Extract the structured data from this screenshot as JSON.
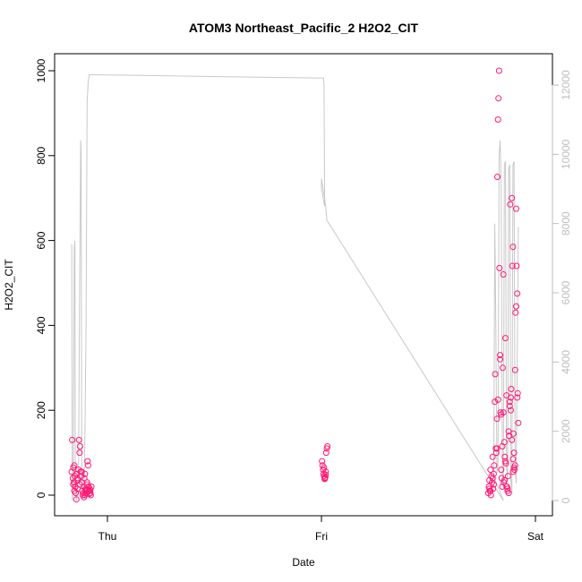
{
  "chart_data": {
    "type": "scatter",
    "title": "ATOM3 Northeast_Pacific_2 H2O2_CIT",
    "xlabel": "Date",
    "ylabel": "H2O2_CIT",
    "x_ticks": [
      {
        "label": "Thu",
        "value": 1.0
      },
      {
        "label": "Fri",
        "value": 2.0
      },
      {
        "label": "Sat",
        "value": 3.0
      }
    ],
    "xlim": [
      0.85,
      3.05
    ],
    "ylim": [
      -40,
      1040
    ],
    "y_ticks": [
      0,
      200,
      400,
      600,
      800,
      1000
    ],
    "y2lim": [
      -500,
      12500
    ],
    "y2_ticks": [
      0,
      2000,
      4000,
      6000,
      8000,
      10000,
      12000
    ],
    "colors": {
      "points": "#ff1a75",
      "altitude_line": "#c8c8c8",
      "right_axis": "#bdbdbd",
      "frame": "#000000"
    },
    "series": [
      {
        "type": "scatter",
        "points": [
          [
            0.835,
            130
          ],
          [
            0.833,
            55
          ],
          [
            0.838,
            40
          ],
          [
            0.84,
            65
          ],
          [
            0.843,
            30
          ],
          [
            0.845,
            70
          ],
          [
            0.848,
            45
          ],
          [
            0.85,
            20
          ],
          [
            0.852,
            5
          ],
          [
            0.855,
            -10
          ],
          [
            0.857,
            50
          ],
          [
            0.86,
            15
          ],
          [
            0.862,
            35
          ],
          [
            0.865,
            60
          ],
          [
            0.867,
            130
          ],
          [
            0.87,
            100
          ],
          [
            0.872,
            115
          ],
          [
            0.875,
            55
          ],
          [
            0.877,
            45
          ],
          [
            0.88,
            30
          ],
          [
            0.882,
            10
          ],
          [
            0.885,
            0
          ],
          [
            0.887,
            5
          ],
          [
            0.89,
            20
          ],
          [
            0.892,
            40
          ],
          [
            0.895,
            50
          ],
          [
            0.897,
            10
          ],
          [
            0.9,
            15
          ],
          [
            0.902,
            5
          ],
          [
            0.905,
            30
          ],
          [
            0.907,
            80
          ],
          [
            0.91,
            70
          ],
          [
            0.912,
            20
          ],
          [
            0.915,
            10
          ],
          [
            0.917,
            15
          ],
          [
            0.92,
            5
          ],
          [
            0.922,
            0
          ],
          [
            0.925,
            20
          ],
          [
            0.87,
            25
          ],
          [
            0.88,
            55
          ],
          [
            0.89,
            -5
          ],
          [
            0.895,
            0
          ],
          [
            0.9,
            12
          ],
          [
            0.905,
            25
          ],
          [
            0.91,
            8
          ],
          [
            0.915,
            3
          ],
          [
            0.92,
            12
          ],
          [
            0.86,
            40
          ],
          [
            0.845,
            10
          ],
          [
            0.84,
            25
          ],
          [
            2.003,
            80
          ],
          [
            2.005,
            70
          ],
          [
            2.008,
            60
          ],
          [
            2.01,
            50
          ],
          [
            2.012,
            45
          ],
          [
            2.015,
            40
          ],
          [
            2.018,
            42
          ],
          [
            2.02,
            55
          ],
          [
            2.022,
            100
          ],
          [
            2.025,
            110
          ],
          [
            2.028,
            115
          ],
          [
            2.012,
            65
          ],
          [
            2.015,
            38
          ],
          [
            2.02,
            48
          ],
          [
            2.78,
            5
          ],
          [
            2.782,
            20
          ],
          [
            2.785,
            35
          ],
          [
            2.787,
            10
          ],
          [
            2.79,
            60
          ],
          [
            2.792,
            0
          ],
          [
            2.795,
            45
          ],
          [
            2.797,
            30
          ],
          [
            2.8,
            90
          ],
          [
            2.802,
            15
          ],
          [
            2.805,
            25
          ],
          [
            2.807,
            70
          ],
          [
            2.81,
            220
          ],
          [
            2.812,
            285
          ],
          [
            2.815,
            110
          ],
          [
            2.817,
            100
          ],
          [
            2.82,
            180
          ],
          [
            2.822,
            750
          ],
          [
            2.825,
            885
          ],
          [
            2.827,
            935
          ],
          [
            2.83,
            1000
          ],
          [
            2.832,
            535
          ],
          [
            2.835,
            330
          ],
          [
            2.837,
            195
          ],
          [
            2.84,
            60
          ],
          [
            2.842,
            40
          ],
          [
            2.845,
            20
          ],
          [
            2.847,
            300
          ],
          [
            2.85,
            520
          ],
          [
            2.852,
            30
          ],
          [
            2.855,
            125
          ],
          [
            2.857,
            90
          ],
          [
            2.86,
            370
          ],
          [
            2.862,
            75
          ],
          [
            2.865,
            235
          ],
          [
            2.867,
            20
          ],
          [
            2.87,
            10
          ],
          [
            2.872,
            45
          ],
          [
            2.875,
            150
          ],
          [
            2.877,
            140
          ],
          [
            2.88,
            210
          ],
          [
            2.882,
            685
          ],
          [
            2.885,
            200
          ],
          [
            2.887,
            250
          ],
          [
            2.89,
            700
          ],
          [
            2.892,
            540
          ],
          [
            2.895,
            585
          ],
          [
            2.897,
            145
          ],
          [
            2.9,
            100
          ],
          [
            2.902,
            60
          ],
          [
            2.905,
            295
          ],
          [
            2.907,
            430
          ],
          [
            2.91,
            675
          ],
          [
            2.912,
            540
          ],
          [
            2.915,
            475
          ],
          [
            2.917,
            240
          ],
          [
            2.92,
            170
          ],
          [
            2.9,
            65
          ],
          [
            2.905,
            70
          ],
          [
            2.895,
            85
          ],
          [
            2.82,
            110
          ],
          [
            2.825,
            225
          ],
          [
            2.835,
            320
          ],
          [
            2.84,
            190
          ],
          [
            2.845,
            115
          ],
          [
            2.85,
            195
          ],
          [
            2.855,
            35
          ],
          [
            2.86,
            80
          ],
          [
            2.865,
            20
          ],
          [
            2.87,
            15
          ],
          [
            2.875,
            5
          ],
          [
            2.88,
            220
          ],
          [
            2.885,
            230
          ],
          [
            2.89,
            130
          ],
          [
            2.895,
            55
          ],
          [
            2.91,
            445
          ],
          [
            2.915,
            230
          ],
          [
            2.8,
            40
          ],
          [
            2.805,
            50
          ],
          [
            2.79,
            10
          ],
          [
            2.785,
            15
          ]
        ]
      },
      {
        "type": "line",
        "axis": "right",
        "points": [
          [
            0.833,
            7400
          ],
          [
            0.836,
            0
          ],
          [
            0.84,
            500
          ],
          [
            0.845,
            7300
          ],
          [
            0.848,
            7500
          ],
          [
            0.85,
            800
          ],
          [
            0.855,
            0
          ],
          [
            0.86,
            300
          ],
          [
            0.865,
            800
          ],
          [
            0.87,
            6000
          ],
          [
            0.875,
            10400
          ],
          [
            0.877,
            10000
          ],
          [
            0.88,
            700
          ],
          [
            0.885,
            300
          ],
          [
            0.89,
            200
          ],
          [
            0.895,
            2000
          ],
          [
            0.9,
            5000
          ],
          [
            0.905,
            11500
          ],
          [
            0.91,
            12100
          ],
          [
            0.915,
            12300
          ],
          [
            2.01,
            12200
          ],
          [
            2.012,
            12000
          ],
          [
            2.015,
            8500
          ],
          [
            2.0,
            9000
          ],
          [
            2.0,
            9300
          ],
          [
            2.02,
            8500
          ],
          [
            2.025,
            8100
          ],
          [
            2.85,
            0
          ],
          [
            2.805,
            700
          ],
          [
            2.81,
            8000
          ],
          [
            2.815,
            5000
          ],
          [
            2.82,
            800
          ],
          [
            2.825,
            1000
          ],
          [
            2.83,
            10000
          ],
          [
            2.835,
            10400
          ],
          [
            2.84,
            9000
          ],
          [
            2.845,
            800
          ],
          [
            2.85,
            400
          ],
          [
            2.855,
            9700
          ],
          [
            2.86,
            9800
          ],
          [
            2.865,
            1000
          ],
          [
            2.87,
            500
          ],
          [
            2.875,
            9600
          ],
          [
            2.88,
            9700
          ],
          [
            2.885,
            600
          ],
          [
            2.89,
            200
          ],
          [
            2.895,
            9700
          ],
          [
            2.9,
            9800
          ],
          [
            2.905,
            1000
          ],
          [
            2.91,
            500
          ],
          [
            2.92,
            7900
          ]
        ]
      }
    ]
  }
}
